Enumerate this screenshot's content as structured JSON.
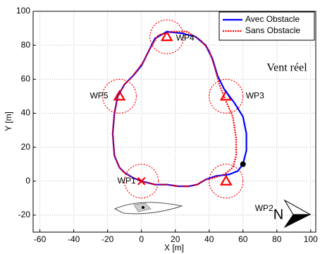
{
  "chart_data": {
    "type": "line",
    "xlabel": "X [m]",
    "ylabel": "Y [m]",
    "xlim": [
      -64,
      103
    ],
    "ylim": [
      -30,
      100
    ],
    "xticks": [
      -60,
      -40,
      -20,
      0,
      20,
      40,
      60,
      80,
      100
    ],
    "yticks": [
      -20,
      0,
      20,
      40,
      60,
      80,
      100
    ],
    "grid": true,
    "legend": "upper right",
    "annotation": "Vent réel",
    "compass_label": "N",
    "series": [
      {
        "name": "Avec Obstacle",
        "color": "#0000ff",
        "style": "solid",
        "x": [
          -10,
          -5,
          0,
          8,
          15,
          22,
          28,
          33,
          38,
          44,
          52,
          57,
          60,
          62,
          62,
          60,
          55,
          49,
          45,
          42,
          38,
          32,
          24,
          15,
          8,
          4,
          0,
          -5,
          -10,
          -14,
          -16,
          -17,
          -16,
          -13,
          -10
        ],
        "values": [
          5,
          2,
          0,
          -2,
          -2,
          -3,
          -3,
          -2,
          1,
          3,
          4,
          6,
          10,
          18,
          28,
          38,
          46,
          54,
          62,
          72,
          80,
          85,
          87,
          88,
          84,
          76,
          68,
          62,
          57,
          50,
          40,
          28,
          15,
          8,
          5
        ]
      },
      {
        "name": "Sans Obstacle",
        "color": "#ff0000",
        "style": "dotted",
        "x": [
          -10,
          -5,
          0,
          8,
          15,
          22,
          28,
          33,
          38,
          43,
          49,
          54,
          56,
          56,
          54,
          50,
          46,
          43,
          40,
          35,
          27,
          18,
          10,
          5,
          1,
          -5,
          -10,
          -14,
          -16,
          -17,
          -16,
          -13,
          -10
        ],
        "values": [
          5,
          2,
          0,
          -2,
          -2,
          -3,
          -3,
          -2,
          1,
          2,
          4,
          8,
          15,
          25,
          38,
          47,
          57,
          68,
          77,
          83,
          88,
          88,
          86,
          78,
          70,
          62,
          57,
          50,
          40,
          28,
          15,
          8,
          5
        ]
      }
    ],
    "waypoints": [
      {
        "label": "WP1",
        "x": 0,
        "y": 0,
        "marker": "x"
      },
      {
        "label": "WP2",
        "x": 50,
        "y": 0,
        "marker": "triangle"
      },
      {
        "label": "WP3",
        "x": 50,
        "y": 50,
        "marker": "triangle"
      },
      {
        "label": "WP4",
        "x": 15,
        "y": 85,
        "marker": "triangle"
      },
      {
        "label": "WP5",
        "x": -13,
        "y": 50,
        "marker": "triangle"
      }
    ],
    "waypoint_radius": 10,
    "waypoint_color": "#ff0000",
    "position": {
      "x": 60,
      "y": 10
    }
  }
}
